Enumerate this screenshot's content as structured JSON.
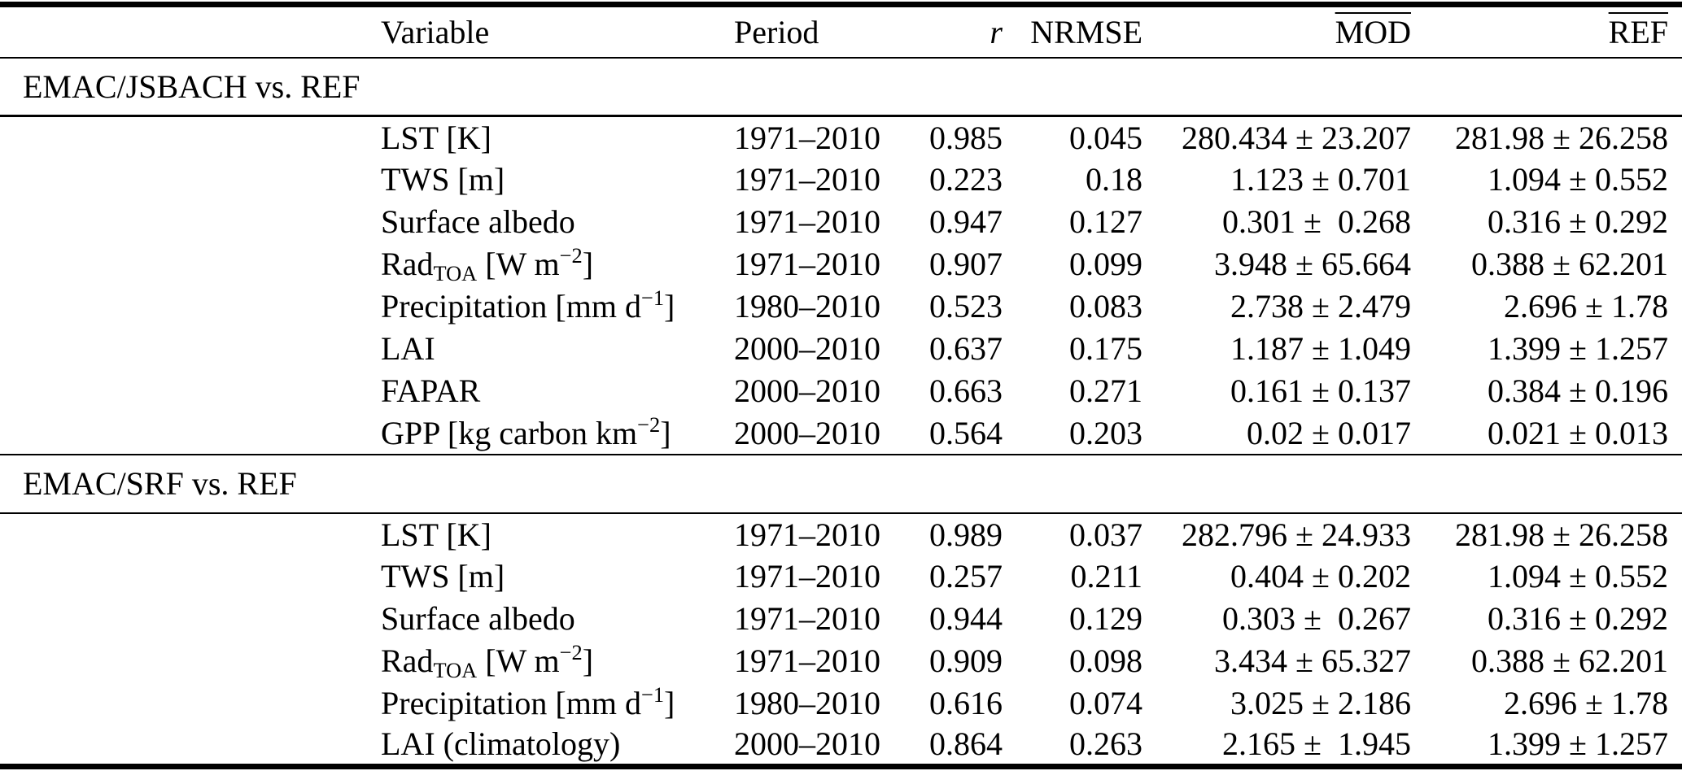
{
  "colors": {
    "text": "#000000",
    "background": "#ffffff",
    "rule": "#000000"
  },
  "table": {
    "columns": {
      "variable": "Variable",
      "period": "Period",
      "r": "r",
      "nrmse": "NRMSE",
      "mod": "MOD",
      "ref": "REF"
    },
    "sections": [
      {
        "title": "EMAC/JSBACH vs. REF",
        "rows": [
          {
            "variable": "LST [K]",
            "period": "1971–2010",
            "r": "0.985",
            "nrmse": "0.045",
            "mod": "280.434 ± 23.207",
            "ref": "281.98 ± 26.258"
          },
          {
            "variable": "TWS [m]",
            "period": "1971–2010",
            "r": "0.223",
            "nrmse": "0.18",
            "mod": "1.123 ± 0.701",
            "ref": "1.094 ± 0.552"
          },
          {
            "variable": "Surface albedo",
            "period": "1971–2010",
            "r": "0.947",
            "nrmse": "0.127",
            "mod": "0.301 ±  0.268",
            "ref": "0.316 ± 0.292"
          },
          {
            "variable": "Rad_{TOA} [W m^{−2}]",
            "period": "1971–2010",
            "r": "0.907",
            "nrmse": "0.099",
            "mod": "3.948 ± 65.664",
            "ref": "0.388 ± 62.201"
          },
          {
            "variable": "Precipitation [mm d^{−1}]",
            "period": "1980–2010",
            "r": "0.523",
            "nrmse": "0.083",
            "mod": "2.738 ± 2.479",
            "ref": "2.696 ± 1.78"
          },
          {
            "variable": "LAI",
            "period": "2000–2010",
            "r": "0.637",
            "nrmse": "0.175",
            "mod": "1.187 ± 1.049",
            "ref": "1.399 ± 1.257"
          },
          {
            "variable": "FAPAR",
            "period": "2000–2010",
            "r": "0.663",
            "nrmse": "0.271",
            "mod": "0.161 ± 0.137",
            "ref": "0.384 ± 0.196"
          },
          {
            "variable": "GPP [kg carbon km^{−2}]",
            "period": "2000–2010",
            "r": "0.564",
            "nrmse": "0.203",
            "mod": "0.02 ± 0.017",
            "ref": "0.021 ± 0.013"
          }
        ]
      },
      {
        "title": "EMAC/SRF vs. REF",
        "rows": [
          {
            "variable": "LST [K]",
            "period": "1971–2010",
            "r": "0.989",
            "nrmse": "0.037",
            "mod": "282.796 ± 24.933",
            "ref": "281.98 ± 26.258"
          },
          {
            "variable": "TWS [m]",
            "period": "1971–2010",
            "r": "0.257",
            "nrmse": "0.211",
            "mod": "0.404 ± 0.202",
            "ref": "1.094 ± 0.552"
          },
          {
            "variable": "Surface albedo",
            "period": "1971–2010",
            "r": "0.944",
            "nrmse": "0.129",
            "mod": "0.303 ±  0.267",
            "ref": "0.316 ± 0.292"
          },
          {
            "variable": "Rad_{TOA} [W m^{−2}]",
            "period": "1971–2010",
            "r": "0.909",
            "nrmse": "0.098",
            "mod": "3.434 ± 65.327",
            "ref": "0.388 ± 62.201"
          },
          {
            "variable": "Precipitation [mm d^{−1}]",
            "period": "1980–2010",
            "r": "0.616",
            "nrmse": "0.074",
            "mod": "3.025 ± 2.186",
            "ref": "2.696 ± 1.78"
          },
          {
            "variable": "LAI (climatology)",
            "period": "2000–2010",
            "r": "0.864",
            "nrmse": "0.263",
            "mod": "2.165 ±  1.945",
            "ref": "1.399 ± 1.257"
          }
        ]
      }
    ]
  }
}
